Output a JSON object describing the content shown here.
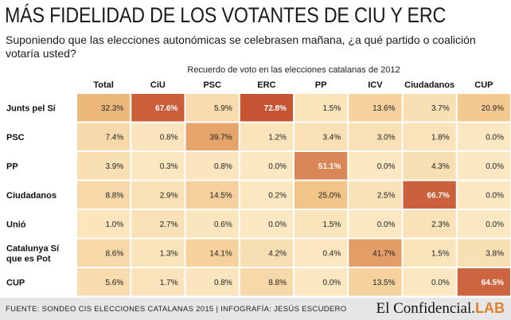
{
  "header": {
    "title": "MÁS FIDELIDAD DE LOS VOTANTES DE CIU Y ERC",
    "subtitle": "Suponiendo que las elecciones autonómicas se celebrasen mañana, ¿a qué partido o coalición votaría usted?",
    "caption": "Recuerdo de voto en las elecciones catalanas de 2012"
  },
  "chart_data": {
    "type": "heatmap",
    "columns": [
      "Total",
      "CiU",
      "PSC",
      "ERC",
      "PP",
      "ICV",
      "Ciudadanos",
      "CUP"
    ],
    "rows": [
      {
        "label": [
          "Junts pel Sí"
        ],
        "values": [
          32.3,
          67.6,
          5.9,
          72.8,
          1.5,
          13.6,
          3.7,
          20.9
        ]
      },
      {
        "label": [
          "PSC"
        ],
        "values": [
          7.4,
          0.8,
          39.7,
          1.2,
          3.4,
          3.0,
          1.8,
          0.0
        ]
      },
      {
        "label": [
          "PP"
        ],
        "values": [
          3.9,
          0.3,
          0.8,
          0.0,
          51.1,
          0.0,
          4.3,
          0.0
        ]
      },
      {
        "label": [
          "Ciudadanos"
        ],
        "values": [
          8.8,
          2.9,
          14.5,
          0.2,
          25.0,
          2.5,
          66.7,
          0.0
        ]
      },
      {
        "label": [
          "Unió"
        ],
        "values": [
          1.0,
          2.7,
          0.6,
          0.0,
          1.5,
          0.0,
          2.3,
          0.0
        ]
      },
      {
        "label": [
          "Catalunya Sí",
          "que es Pot"
        ],
        "values": [
          8.6,
          1.3,
          14.1,
          4.2,
          0.4,
          41.7,
          1.5,
          3.8
        ]
      },
      {
        "label": [
          "CUP"
        ],
        "values": [
          5.6,
          1.7,
          0.8,
          8.8,
          0.0,
          13.5,
          0.0,
          64.5
        ]
      }
    ],
    "value_suffix": "%",
    "colors": {
      "low": "#fbe8c2",
      "high": "#c44e2e",
      "label_dark": "#ffffff",
      "label_light": "#222222"
    }
  },
  "footer": {
    "source": "FUENTE: SONDEO CIS ELECCIONES CATALANAS 2015 | INFOGRAFÍA: JESÚS ESCUDERO",
    "brand_main": "El Confidencial.",
    "brand_lab": "LAB"
  }
}
